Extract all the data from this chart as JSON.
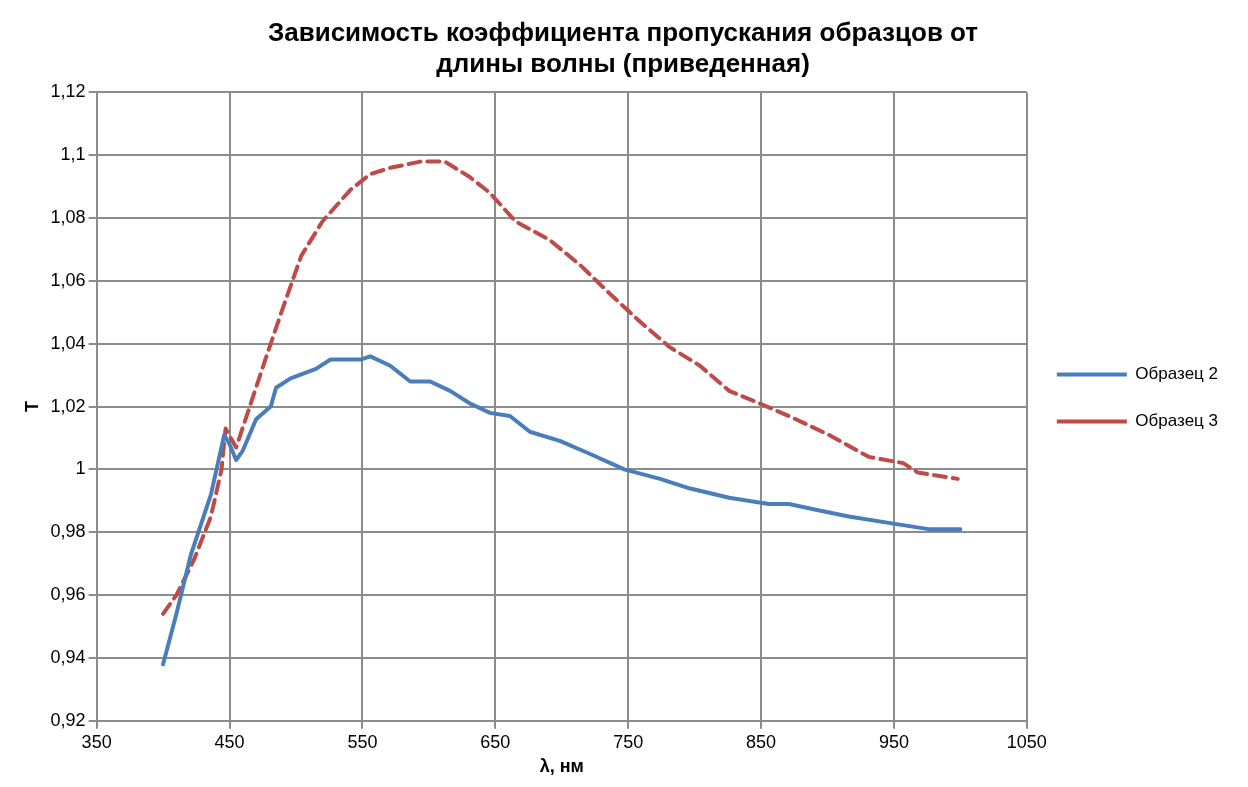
{
  "chart_data": {
    "type": "line",
    "title": "Зависимость коэффициента пропускания образцов от длины волны (приведенная)",
    "xlabel": "λ, нм",
    "ylabel": "T",
    "xlim": [
      350,
      1050
    ],
    "xticks": [
      350,
      450,
      550,
      650,
      750,
      850,
      950,
      1050
    ],
    "ylim": [
      0.92,
      1.12
    ],
    "yticks": [
      {
        "value": 0.92,
        "label": "0,92"
      },
      {
        "value": 0.94,
        "label": "0,94"
      },
      {
        "value": 0.96,
        "label": "0,96"
      },
      {
        "value": 0.98,
        "label": "0,98"
      },
      1,
      {
        "value": 1.02,
        "label": "1,02"
      },
      {
        "value": 1.04,
        "label": "1,04"
      },
      {
        "value": 1.06,
        "label": "1,06"
      },
      {
        "value": 1.08,
        "label": "1,08"
      },
      {
        "value": 1.1,
        "label": "1,1"
      },
      {
        "value": 1.12,
        "label": "1,12"
      }
    ],
    "grid": true,
    "legend": "right",
    "marker": "none",
    "series": [
      {
        "name": "Образец 2",
        "color": "#4a7ebb",
        "line_style": "solid",
        "x": [
          400,
          410,
          421,
          436,
          446,
          450,
          455,
          460,
          470,
          481,
          485,
          496,
          515,
          526,
          549,
          556,
          571,
          586,
          601,
          616,
          631,
          646,
          661,
          676,
          699,
          721,
          747,
          774,
          796,
          826,
          856,
          871,
          893,
          916,
          946,
          976,
          1000
        ],
        "values": [
          0.938,
          0.954,
          0.973,
          0.992,
          1.011,
          1.008,
          1.003,
          1.006,
          1.016,
          1.02,
          1.026,
          1.029,
          1.032,
          1.035,
          1.035,
          1.036,
          1.033,
          1.028,
          1.028,
          1.025,
          1.021,
          1.018,
          1.017,
          1.012,
          1.009,
          1.005,
          1.0,
          0.997,
          0.994,
          0.991,
          0.989,
          0.989,
          0.987,
          0.985,
          0.983,
          0.981,
          0.981
        ]
      },
      {
        "name": "Образец 3",
        "color": "#be4b48",
        "line_style": "dashed",
        "x": [
          400,
          410,
          423,
          436,
          444,
          447,
          455,
          466,
          477,
          489,
          504,
          520,
          541,
          556,
          571,
          594,
          612,
          631,
          646,
          665,
          691,
          714,
          736,
          759,
          781,
          804,
          826,
          849,
          871,
          901,
          931,
          957,
          968,
          983,
          998
        ],
        "values": [
          0.954,
          0.96,
          0.971,
          0.985,
          1.0,
          1.013,
          1.007,
          1.021,
          1.035,
          1.05,
          1.068,
          1.079,
          1.089,
          1.094,
          1.096,
          1.098,
          1.098,
          1.093,
          1.088,
          1.079,
          1.073,
          1.065,
          1.056,
          1.047,
          1.039,
          1.033,
          1.025,
          1.021,
          1.017,
          1.011,
          1.004,
          1.002,
          0.999,
          0.998,
          0.997
        ]
      }
    ]
  }
}
